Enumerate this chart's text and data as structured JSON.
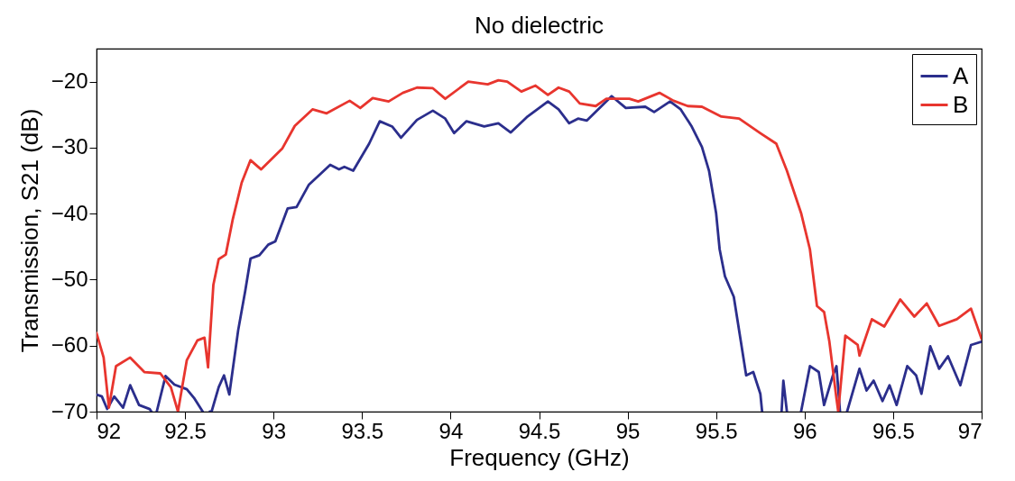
{
  "chart_data": {
    "type": "line",
    "title": "No dielectric",
    "xlabel": "Frequency (GHz)",
    "ylabel": "Transmission, S21 (dB)",
    "xlim": [
      92,
      97
    ],
    "ylim": [
      -70,
      -15
    ],
    "xticks": [
      92,
      92.5,
      93,
      93.5,
      94,
      94.5,
      95,
      95.5,
      96,
      96.5,
      97
    ],
    "yticks": [
      -70,
      -60,
      -50,
      -40,
      -30,
      -20
    ],
    "grid": false,
    "legend": "top right",
    "line_style": "solid",
    "marker": "none",
    "series": [
      {
        "name": "A",
        "color": "#2b2e8c",
        "x": [
          92.0,
          92.03,
          92.06,
          92.1,
          92.15,
          92.19,
          92.24,
          92.3,
          92.31,
          92.33,
          92.34,
          92.39,
          92.44,
          92.51,
          92.55,
          92.6,
          92.62,
          92.64,
          92.65,
          92.69,
          92.72,
          92.75,
          92.8,
          92.84,
          92.87,
          92.92,
          92.97,
          93.01,
          93.08,
          93.13,
          93.2,
          93.32,
          93.37,
          93.4,
          93.45,
          93.54,
          93.6,
          93.67,
          93.72,
          93.81,
          93.9,
          93.97,
          94.02,
          94.09,
          94.19,
          94.27,
          94.34,
          94.43,
          94.55,
          94.61,
          94.67,
          94.72,
          94.77,
          94.91,
          94.99,
          95.1,
          95.15,
          95.24,
          95.3,
          95.36,
          95.42,
          95.46,
          95.5,
          95.52,
          95.55,
          95.6,
          95.64,
          95.67,
          95.71,
          95.75,
          95.76,
          95.82,
          95.87,
          95.88,
          95.9,
          95.94,
          95.98,
          96.03,
          96.08,
          96.11,
          96.16,
          96.18,
          96.2,
          96.22,
          96.24,
          96.31,
          96.35,
          96.39,
          96.44,
          96.48,
          96.52,
          96.58,
          96.63,
          96.66,
          96.71,
          96.76,
          96.81,
          96.88,
          96.94,
          97.0
        ],
        "values": [
          -67.4,
          -67.7,
          -69.6,
          -67.7,
          -69.4,
          -66,
          -69,
          -69.6,
          -70,
          null,
          -70,
          -64.6,
          -65.9,
          -66.6,
          -67.9,
          -70,
          null,
          -70,
          -70,
          -66.3,
          -64.5,
          -67.4,
          -57.7,
          -51.7,
          -46.8,
          -46.3,
          -44.7,
          -44.2,
          -39.2,
          -39,
          -35.6,
          -32.6,
          -33.3,
          -32.9,
          -33.5,
          -29.4,
          -26,
          -26.8,
          -28.5,
          -25.8,
          -24.4,
          -25.6,
          -27.8,
          -26,
          -26.8,
          -26.3,
          -27.7,
          -25.4,
          -23,
          -24.2,
          -26.3,
          -25.6,
          -25.9,
          -22.2,
          -24,
          -23.8,
          -24.6,
          -23,
          -24.2,
          -26.7,
          -29.9,
          -33.5,
          -39.9,
          -45.4,
          -49.5,
          -52.6,
          -59.4,
          -64.5,
          -64,
          -67.3,
          -70,
          null,
          -70,
          -65.3,
          -70,
          null,
          -70,
          -63.1,
          -64,
          -69,
          -64.5,
          -63.1,
          -70,
          null,
          -70,
          -63.5,
          -66.8,
          -65.3,
          -68.4,
          -66,
          -69,
          -63.1,
          -64.5,
          -67.3,
          -60.1,
          -63.5,
          -61.6,
          -66,
          -59.9,
          -59.4
        ]
      },
      {
        "name": "B",
        "color": "#e8352e",
        "x": [
          92.0,
          92.04,
          92.07,
          92.11,
          92.19,
          92.27,
          92.36,
          92.42,
          92.46,
          92.51,
          92.57,
          92.61,
          92.63,
          92.66,
          92.69,
          92.73,
          92.77,
          92.82,
          92.87,
          92.93,
          93.05,
          93.12,
          93.22,
          93.3,
          93.43,
          93.49,
          93.56,
          93.65,
          93.73,
          93.81,
          93.9,
          93.97,
          94.1,
          94.21,
          94.27,
          94.32,
          94.4,
          94.48,
          94.55,
          94.61,
          94.67,
          94.73,
          94.82,
          94.88,
          95.01,
          95.06,
          95.18,
          95.26,
          95.34,
          95.42,
          95.53,
          95.63,
          95.75,
          95.84,
          95.9,
          95.98,
          96.03,
          96.07,
          96.11,
          96.14,
          96.18,
          96.19,
          96.23,
          96.3,
          96.31,
          96.38,
          96.45,
          96.54,
          96.62,
          96.69,
          96.76,
          96.86,
          96.94,
          97.0
        ],
        "values": [
          -58.1,
          -61.8,
          -69.4,
          -63.1,
          -61.8,
          -64,
          -64.2,
          -66.3,
          -70,
          -62.2,
          -59.2,
          -58.8,
          -63.3,
          -50.8,
          -46.9,
          -46.2,
          -40.8,
          -35.3,
          -31.9,
          -33.3,
          -30.1,
          -26.7,
          -24.2,
          -24.8,
          -22.9,
          -24,
          -22.5,
          -23,
          -21.7,
          -20.9,
          -21,
          -22.6,
          -20,
          -20.4,
          -19.8,
          -20,
          -21.5,
          -20.6,
          -22,
          -20.9,
          -21.5,
          -23.3,
          -23.7,
          -22.6,
          -22.6,
          -23,
          -21.7,
          -22.9,
          -23.7,
          -23.8,
          -25.3,
          -25.6,
          -27.8,
          -29.4,
          -33.5,
          -39.9,
          -45.4,
          -54,
          -54.9,
          -59.4,
          -68,
          -70,
          -58.5,
          -59.9,
          -61.5,
          -56,
          -57.1,
          -53,
          -55.6,
          -53.6,
          -57,
          -56,
          -54.4,
          -59
        ]
      }
    ]
  }
}
